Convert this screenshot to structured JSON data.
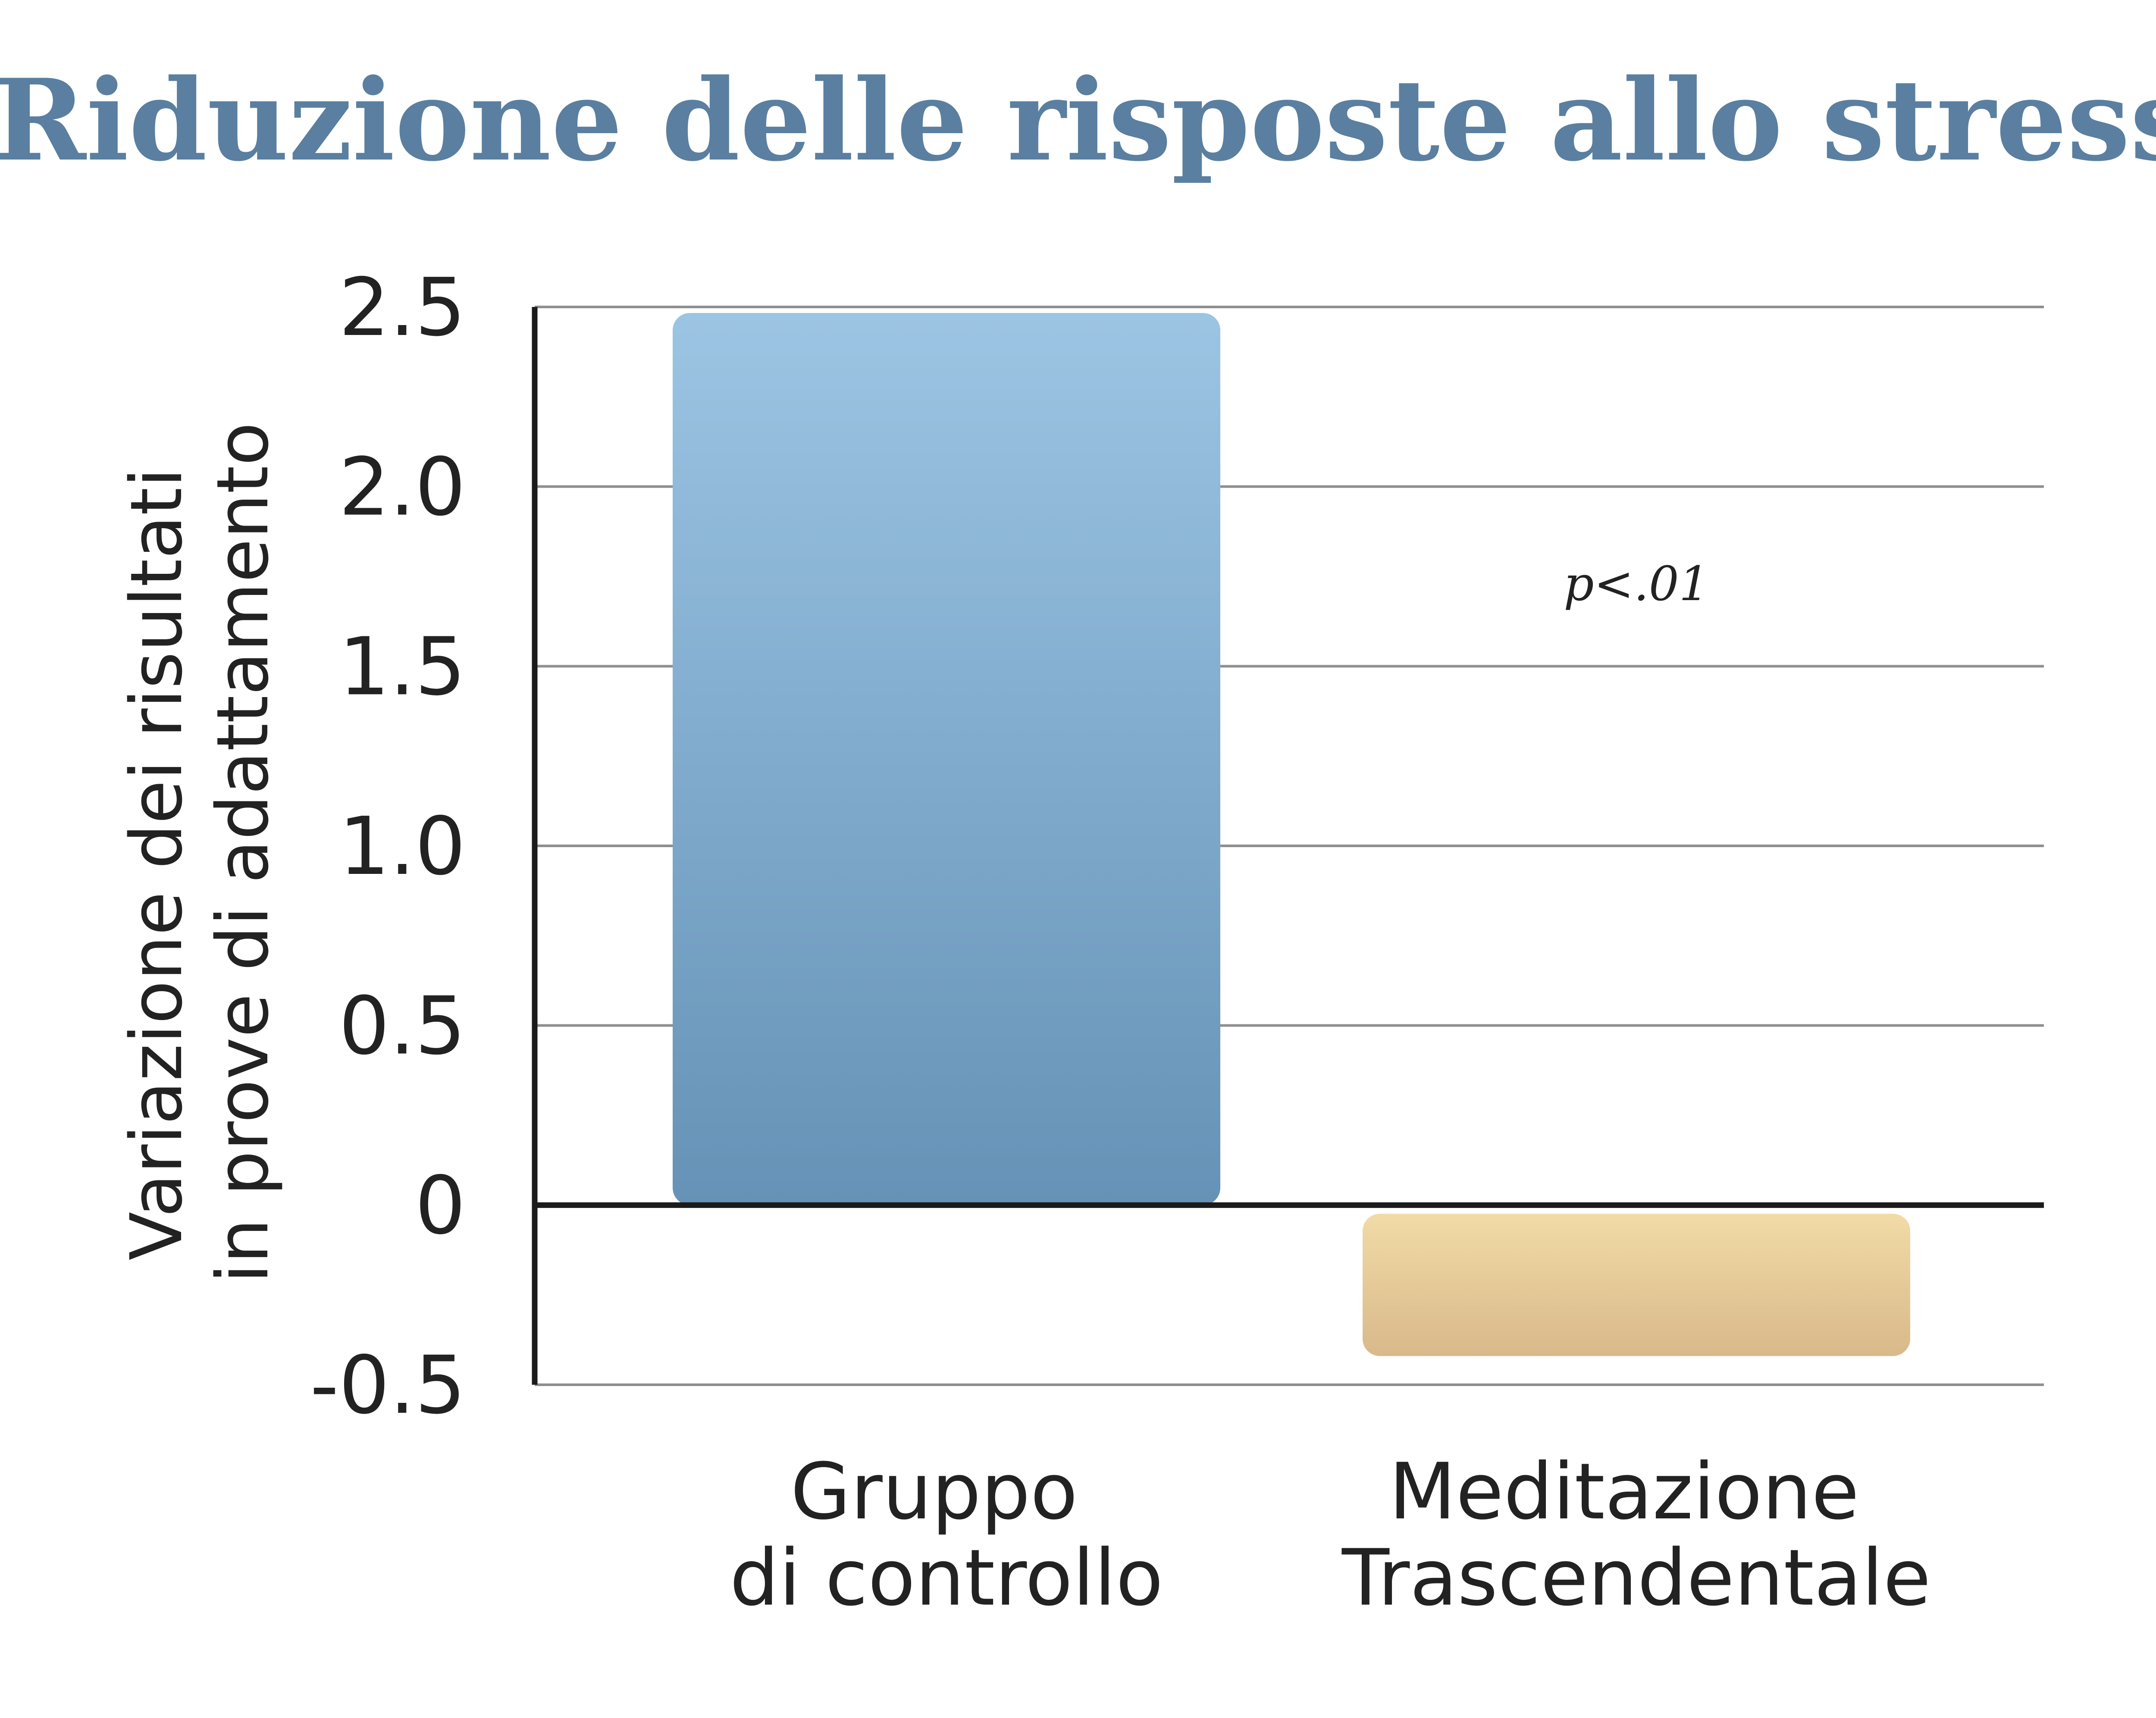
{
  "chart_data": {
    "type": "bar",
    "title": "Riduzione delle risposte allo stress",
    "ylabel_lines": [
      "Variazione dei risultati",
      "in prove di adattamento"
    ],
    "categories": [
      [
        "Gruppo",
        "di controllo"
      ],
      [
        "Meditazione",
        "Trascendentale"
      ]
    ],
    "values": [
      2.5,
      -0.42
    ],
    "ylim": [
      -0.5,
      2.5
    ],
    "yticks": [
      2.5,
      2.0,
      1.5,
      1.0,
      0.5,
      0,
      -0.5
    ],
    "ytick_labels": [
      "2.5",
      "2.0",
      "1.5",
      "1.0",
      "0.5",
      "0",
      "-0.5"
    ],
    "grid": true,
    "annotation": "p<.01",
    "colors": {
      "title": "#5a7fa0",
      "bar_control_top": "#9cc4e3",
      "bar_control_bottom": "#6592b6",
      "bar_tm_top": "#f1dba6",
      "bar_tm_bottom": "#d9b98a"
    }
  }
}
